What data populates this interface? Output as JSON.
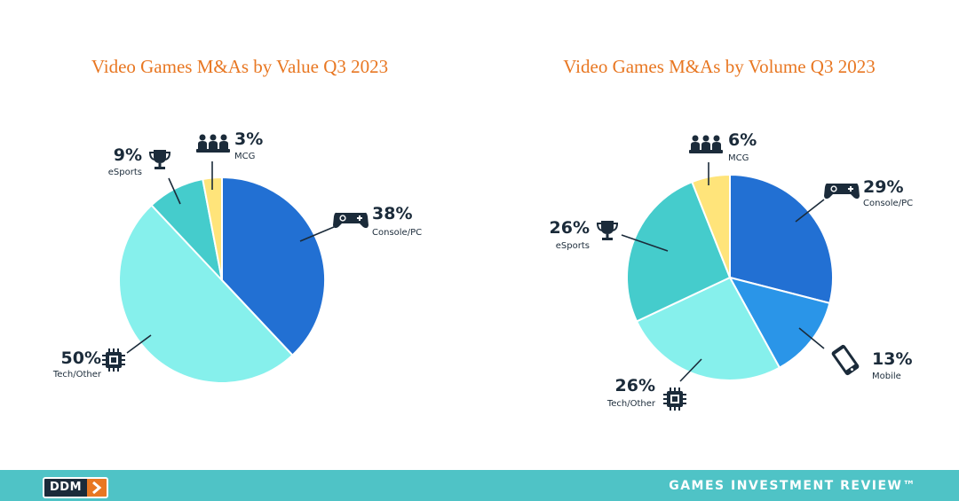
{
  "colors": {
    "console_pc": "#2270D3",
    "mobile": "#2A95E8",
    "tech_other": "#86F0EC",
    "esports": "#45CCCC",
    "mcg": "#FFE47A",
    "title": "#E87722",
    "text": "#1B2B3A",
    "footer": "#4FC3C6"
  },
  "chart_data": [
    {
      "type": "pie",
      "title": "Video Games M&As by Value Q3 2023",
      "slices": [
        {
          "name": "Console/PC",
          "value": 38,
          "label": "38%",
          "icon": "gamepad-icon",
          "color": "#2270D3"
        },
        {
          "name": "Tech/Other",
          "value": 50,
          "label": "50%",
          "icon": "chip-icon",
          "color": "#86F0EC"
        },
        {
          "name": "eSports",
          "value": 9,
          "label": "9%",
          "icon": "trophy-icon",
          "color": "#45CCCC"
        },
        {
          "name": "MCG",
          "value": 3,
          "label": "3%",
          "icon": "people-icon",
          "color": "#FFE47A"
        }
      ]
    },
    {
      "type": "pie",
      "title": "Video Games M&As by Volume Q3 2023",
      "slices": [
        {
          "name": "Console/PC",
          "value": 29,
          "label": "29%",
          "icon": "gamepad-icon",
          "color": "#2270D3"
        },
        {
          "name": "Mobile",
          "value": 13,
          "label": "13%",
          "icon": "phone-icon",
          "color": "#2A95E8"
        },
        {
          "name": "Tech/Other",
          "value": 26,
          "label": "26%",
          "icon": "chip-icon",
          "color": "#86F0EC"
        },
        {
          "name": "eSports",
          "value": 26,
          "label": "26%",
          "icon": "trophy-icon",
          "color": "#45CCCC"
        },
        {
          "name": "MCG",
          "value": 6,
          "label": "6%",
          "icon": "people-icon",
          "color": "#FFE47A"
        }
      ]
    }
  ],
  "footer": {
    "logo_text": "DDM",
    "brand_text": "GAMES INVESTMENT REVIEW™"
  }
}
